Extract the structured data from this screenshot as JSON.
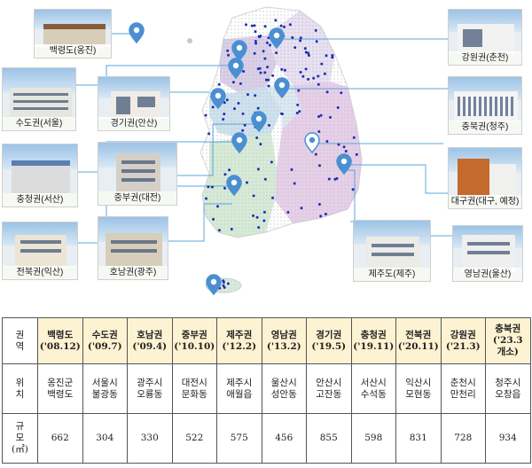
{
  "map_labels": [
    {
      "id": "baengnyeong",
      "text": "백령도(옹진)"
    },
    {
      "id": "sudo",
      "text": "수도권(서울)"
    },
    {
      "id": "gyeonggi",
      "text": "경기권(안산)"
    },
    {
      "id": "chungcheong",
      "text": "충청권(서산)"
    },
    {
      "id": "jungbu",
      "text": "중부권(대전)"
    },
    {
      "id": "jeonbuk",
      "text": "전북권(익산)"
    },
    {
      "id": "honam",
      "text": "호남권(광주)"
    },
    {
      "id": "gangwon",
      "text": "강원권(춘천)"
    },
    {
      "id": "chungbuk",
      "text": "충북권(청주)"
    },
    {
      "id": "daegu",
      "text": "대구권(대구, 예정)"
    },
    {
      "id": "jeju",
      "text": "제주도(제주)"
    },
    {
      "id": "yeongnam",
      "text": "영남권(울산)"
    }
  ],
  "table": {
    "row_headers": {
      "region": [
        "권",
        "역"
      ],
      "location": [
        "위",
        "치"
      ],
      "size": [
        "규",
        "모",
        "(㎡)"
      ]
    },
    "columns": [
      {
        "name": "백령도",
        "date": "('08.12)",
        "loc1": "옹진군",
        "loc2": "백령도",
        "size": "662"
      },
      {
        "name": "수도권",
        "date": "('09.7)",
        "loc1": "서울시",
        "loc2": "불광동",
        "size": "304"
      },
      {
        "name": "호남권",
        "date": "('09.4)",
        "loc1": "광주시",
        "loc2": "오룡동",
        "size": "330"
      },
      {
        "name": "중부권",
        "date": "('10.10)",
        "loc1": "대전시",
        "loc2": "문화동",
        "size": "522"
      },
      {
        "name": "제주권",
        "date": "('12.2)",
        "loc1": "제주시",
        "loc2": "애월읍",
        "size": "575"
      },
      {
        "name": "영남권",
        "date": "('13.2)",
        "loc1": "울산시",
        "loc2": "성안동",
        "size": "456"
      },
      {
        "name": "경기권",
        "date": "('19.5)",
        "loc1": "안산시",
        "loc2": "고잔동",
        "size": "855"
      },
      {
        "name": "충청권",
        "date": "('19.11)",
        "loc1": "서산시",
        "loc2": "수석동",
        "size": "598"
      },
      {
        "name": "전북권",
        "date": "('20.11)",
        "loc1": "익산시",
        "loc2": "모현동",
        "size": "831"
      },
      {
        "name": "강원권",
        "date": "('21.3)",
        "loc1": "춘천시",
        "loc2": "만천리",
        "size": "728"
      },
      {
        "name": "충북권",
        "date": "('23.3",
        "date2": "개소)",
        "loc1": "청주시",
        "loc2": "오창읍",
        "size": "934"
      }
    ]
  },
  "colors": {
    "pin": "#4a8fd1",
    "pin_highlight": "#ffffff",
    "station_dot": "#1e2fb0",
    "header_fill": "#fdf3d3",
    "connector": "#5aa7dd"
  },
  "icons": [
    "map-pin-icon"
  ]
}
